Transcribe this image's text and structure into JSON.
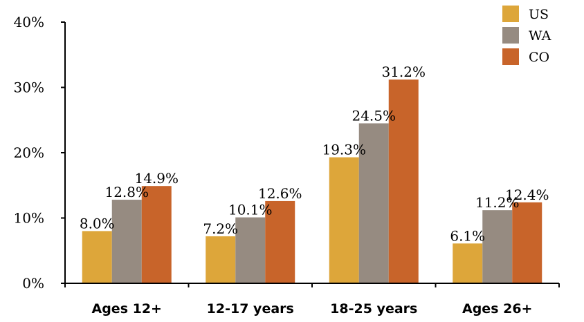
{
  "chart_data": {
    "type": "bar",
    "title": "",
    "xlabel": "",
    "ylabel": "",
    "categories": [
      "Ages 12+",
      "12-17 years",
      "18-25 years",
      "Ages 26+"
    ],
    "series": [
      {
        "name": "US",
        "color": "#DDA63A",
        "values": [
          8.0,
          7.2,
          19.3,
          6.1
        ],
        "labels": [
          "8.0%",
          "7.2%",
          "19.3%",
          "6.1%"
        ]
      },
      {
        "name": "WA",
        "color": "#968B81",
        "values": [
          12.8,
          10.1,
          24.5,
          11.2
        ],
        "labels": [
          "12.8%",
          "10.1%",
          "24.5%",
          "11.2%"
        ]
      },
      {
        "name": "CO",
        "color": "#C8642A",
        "values": [
          14.9,
          12.6,
          31.2,
          12.4
        ],
        "labels": [
          "14.9%",
          "12.6%",
          "31.2%",
          "12.4%"
        ]
      }
    ],
    "ylim": [
      0,
      40
    ],
    "yticks": [
      0,
      10,
      20,
      30,
      40
    ],
    "ytick_labels": [
      "0%",
      "10%",
      "20%",
      "30%",
      "40%"
    ],
    "grid": false,
    "legend_position": "top-right"
  }
}
